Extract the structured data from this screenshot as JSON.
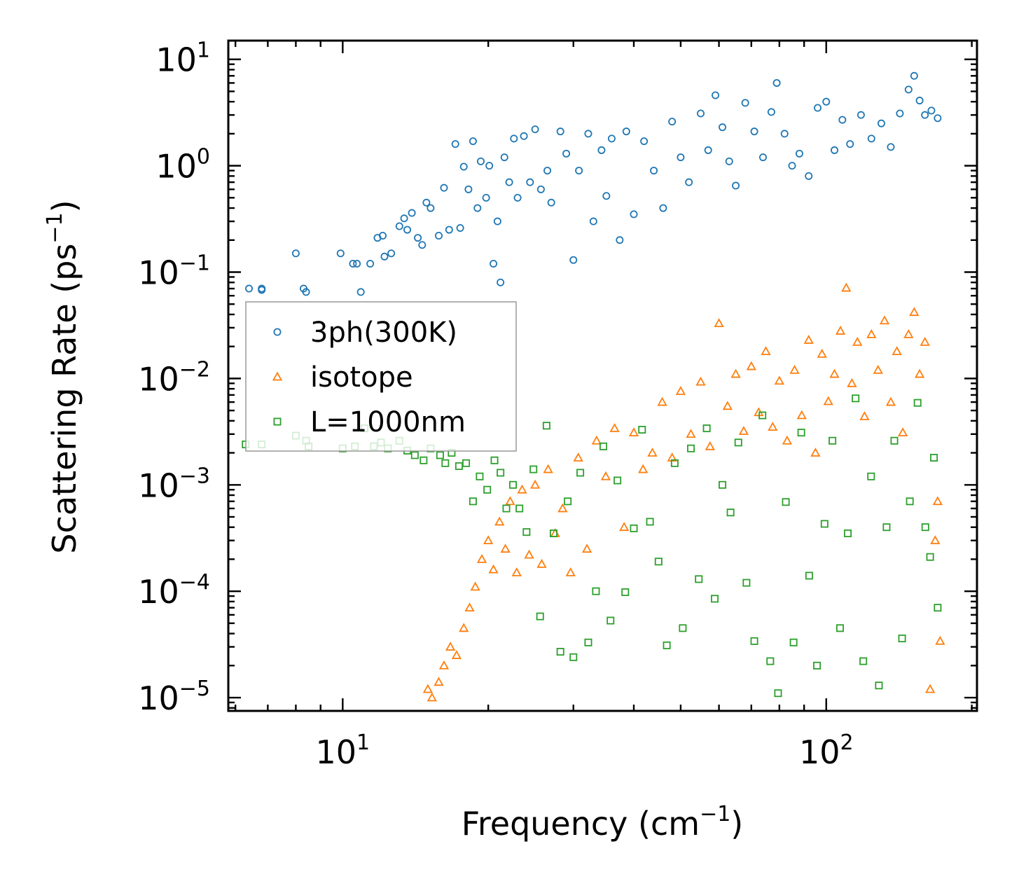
{
  "chart_data": {
    "type": "scatter",
    "xlabel": "Frequency (cm",
    "xlabel_sup": "−1",
    "xlabel_end": ")",
    "ylabel": "Scattering Rate (ps",
    "ylabel_sup": "−1",
    "ylabel_end": ")",
    "xscale": "log",
    "yscale": "log",
    "xlim": [
      5.8,
      205
    ],
    "ylim": [
      7.5e-06,
      15
    ],
    "x_ticks": [
      {
        "value": 10,
        "base": "10",
        "exp": "1"
      },
      {
        "value": 100,
        "base": "10",
        "exp": "2"
      }
    ],
    "y_ticks": [
      {
        "value": 10,
        "base": "10",
        "exp": "1"
      },
      {
        "value": 1,
        "base": "10",
        "exp": "0"
      },
      {
        "value": 0.1,
        "base": "10",
        "exp": "−1"
      },
      {
        "value": 0.01,
        "base": "10",
        "exp": "−2"
      },
      {
        "value": 0.001,
        "base": "10",
        "exp": "−3"
      },
      {
        "value": 0.0001,
        "base": "10",
        "exp": "−4"
      },
      {
        "value": 1e-05,
        "base": "10",
        "exp": "−5"
      }
    ],
    "legend_position": "center-left",
    "series": [
      {
        "name": "3ph(300K)",
        "marker": "circle",
        "color": "#1f77b4",
        "points": [
          [
            6.4,
            0.07
          ],
          [
            6.8,
            0.07
          ],
          [
            6.8,
            0.068
          ],
          [
            8.0,
            0.15
          ],
          [
            8.3,
            0.07
          ],
          [
            8.4,
            0.065
          ],
          [
            9.9,
            0.15
          ],
          [
            10.5,
            0.12
          ],
          [
            10.7,
            0.12
          ],
          [
            10.9,
            0.065
          ],
          [
            11.4,
            0.12
          ],
          [
            11.8,
            0.21
          ],
          [
            12.1,
            0.22
          ],
          [
            12.2,
            0.14
          ],
          [
            12.6,
            0.15
          ],
          [
            13.1,
            0.27
          ],
          [
            13.4,
            0.32
          ],
          [
            13.6,
            0.25
          ],
          [
            13.9,
            0.36
          ],
          [
            14.3,
            0.21
          ],
          [
            14.6,
            0.18
          ],
          [
            14.9,
            0.45
          ],
          [
            15.2,
            0.4
          ],
          [
            15.8,
            0.22
          ],
          [
            16.2,
            0.62
          ],
          [
            16.6,
            0.25
          ],
          [
            17.1,
            1.6
          ],
          [
            17.5,
            0.26
          ],
          [
            17.8,
            0.98
          ],
          [
            18.2,
            0.6
          ],
          [
            18.6,
            1.7
          ],
          [
            19.0,
            0.4
          ],
          [
            19.3,
            1.1
          ],
          [
            19.8,
            0.5
          ],
          [
            20.1,
            1.0
          ],
          [
            20.5,
            0.12
          ],
          [
            20.9,
            0.3
          ],
          [
            21.2,
            0.08
          ],
          [
            21.6,
            1.2
          ],
          [
            22.1,
            0.7
          ],
          [
            22.6,
            1.8
          ],
          [
            23.0,
            0.5
          ],
          [
            23.7,
            1.9
          ],
          [
            24.4,
            0.7
          ],
          [
            25.0,
            2.2
          ],
          [
            25.7,
            0.6
          ],
          [
            26.5,
            0.9
          ],
          [
            27.0,
            0.45
          ],
          [
            28.2,
            2.1
          ],
          [
            29.0,
            1.3
          ],
          [
            30.0,
            0.13
          ],
          [
            30.8,
            0.9
          ],
          [
            32.2,
            2.0
          ],
          [
            33.0,
            0.3
          ],
          [
            34.3,
            1.4
          ],
          [
            35.1,
            0.52
          ],
          [
            36.0,
            1.8
          ],
          [
            37.4,
            0.2
          ],
          [
            38.6,
            2.1
          ],
          [
            40.0,
            0.35
          ],
          [
            42.0,
            1.7
          ],
          [
            44.0,
            0.9
          ],
          [
            46.0,
            0.4
          ],
          [
            48.0,
            2.6
          ],
          [
            50.0,
            1.2
          ],
          [
            52.0,
            0.7
          ],
          [
            55.0,
            3.1
          ],
          [
            57.0,
            1.4
          ],
          [
            59.0,
            4.6
          ],
          [
            61.0,
            2.3
          ],
          [
            63.0,
            1.1
          ],
          [
            65.0,
            0.65
          ],
          [
            68.0,
            3.9
          ],
          [
            71.0,
            2.1
          ],
          [
            74.0,
            1.2
          ],
          [
            77.0,
            3.2
          ],
          [
            79.0,
            6.0
          ],
          [
            82.0,
            2.0
          ],
          [
            85.0,
            1.0
          ],
          [
            88.0,
            1.3
          ],
          [
            92.0,
            0.8
          ],
          [
            96.0,
            3.5
          ],
          [
            100.0,
            4.0
          ],
          [
            104.0,
            1.4
          ],
          [
            108.0,
            2.7
          ],
          [
            112.0,
            1.6
          ],
          [
            118.0,
            3.0
          ],
          [
            124.0,
            1.8
          ],
          [
            130.0,
            2.5
          ],
          [
            136.0,
            1.5
          ],
          [
            142.0,
            3.1
          ],
          [
            148.0,
            5.2
          ],
          [
            152.0,
            7.0
          ],
          [
            156.0,
            4.1
          ],
          [
            160.0,
            3.0
          ],
          [
            165.0,
            3.3
          ],
          [
            170.0,
            2.8
          ]
        ]
      },
      {
        "name": "isotope",
        "marker": "triangle",
        "color": "#ff7f0e",
        "points": [
          [
            15.0,
            1.2e-05
          ],
          [
            15.3,
            1e-05
          ],
          [
            15.8,
            1.4e-05
          ],
          [
            16.2,
            2e-05
          ],
          [
            16.7,
            3e-05
          ],
          [
            17.2,
            2.5e-05
          ],
          [
            17.8,
            4.5e-05
          ],
          [
            18.3,
            7e-05
          ],
          [
            18.8,
            0.00011
          ],
          [
            19.4,
            0.0002
          ],
          [
            20.0,
            0.0003
          ],
          [
            20.5,
            0.00016
          ],
          [
            21.1,
            0.00045
          ],
          [
            21.7,
            0.00025
          ],
          [
            22.2,
            0.0007
          ],
          [
            22.9,
            0.00015
          ],
          [
            23.5,
            0.0009
          ],
          [
            24.3,
            0.00022
          ],
          [
            25.0,
            0.001
          ],
          [
            25.8,
            0.00018
          ],
          [
            26.6,
            0.0014
          ],
          [
            27.5,
            0.00035
          ],
          [
            28.5,
            0.0006
          ],
          [
            29.6,
            0.00015
          ],
          [
            30.7,
            0.0018
          ],
          [
            32.0,
            0.00025
          ],
          [
            33.5,
            0.0026
          ],
          [
            35.0,
            0.0012
          ],
          [
            36.5,
            0.0034
          ],
          [
            38.2,
            0.0004
          ],
          [
            40.0,
            0.0031
          ],
          [
            41.8,
            0.0014
          ],
          [
            43.7,
            0.002
          ],
          [
            45.8,
            0.006
          ],
          [
            48.0,
            0.0018
          ],
          [
            50.0,
            0.0076
          ],
          [
            52.5,
            0.003
          ],
          [
            55.0,
            0.0093
          ],
          [
            57.5,
            0.0023
          ],
          [
            60.0,
            0.033
          ],
          [
            62.5,
            0.0055
          ],
          [
            65.0,
            0.011
          ],
          [
            67.5,
            0.0032
          ],
          [
            70.0,
            0.013
          ],
          [
            72.5,
            0.0048
          ],
          [
            75.0,
            0.018
          ],
          [
            77.5,
            0.0035
          ],
          [
            80.0,
            0.0095
          ],
          [
            83.0,
            0.0026
          ],
          [
            86.0,
            0.012
          ],
          [
            89.0,
            0.0045
          ],
          [
            92.0,
            0.023
          ],
          [
            95.0,
            0.002
          ],
          [
            98.0,
            0.017
          ],
          [
            101.0,
            0.0061
          ],
          [
            104.0,
            0.011
          ],
          [
            107.0,
            0.028
          ],
          [
            110.0,
            0.071
          ],
          [
            113.0,
            0.009
          ],
          [
            116.0,
            0.022
          ],
          [
            120.0,
            0.0044
          ],
          [
            124.0,
            0.026
          ],
          [
            128.0,
            0.012
          ],
          [
            132.0,
            0.035
          ],
          [
            136.0,
            0.006
          ],
          [
            140.0,
            0.018
          ],
          [
            144.0,
            0.0031
          ],
          [
            148.0,
            0.026
          ],
          [
            152.0,
            0.042
          ],
          [
            156.0,
            0.011
          ],
          [
            160.0,
            0.022
          ],
          [
            164.0,
            1.2e-05
          ],
          [
            168.0,
            0.0003
          ],
          [
            170.0,
            0.0007
          ],
          [
            172.0,
            3.4e-05
          ]
        ]
      },
      {
        "name": "L=1000nm",
        "marker": "square",
        "color": "#2ca02c",
        "points": [
          [
            6.3,
            0.0024
          ],
          [
            6.8,
            0.0024
          ],
          [
            8.0,
            0.0029
          ],
          [
            8.4,
            0.0026
          ],
          [
            8.5,
            0.0023
          ],
          [
            10.0,
            0.0022
          ],
          [
            10.6,
            0.0023
          ],
          [
            11.1,
            0.0034
          ],
          [
            11.6,
            0.0023
          ],
          [
            12.0,
            0.0025
          ],
          [
            12.4,
            0.0022
          ],
          [
            13.1,
            0.0026
          ],
          [
            13.6,
            0.0021
          ],
          [
            14.1,
            0.0019
          ],
          [
            14.7,
            0.0017
          ],
          [
            15.2,
            0.0022
          ],
          [
            15.9,
            0.0019
          ],
          [
            16.3,
            0.0016
          ],
          [
            16.8,
            0.002
          ],
          [
            17.4,
            0.0015
          ],
          [
            18.0,
            0.0016
          ],
          [
            18.6,
            0.0007
          ],
          [
            19.2,
            0.0012
          ],
          [
            19.9,
            0.0009
          ],
          [
            20.6,
            0.0017
          ],
          [
            21.2,
            0.0013
          ],
          [
            21.8,
            0.0006
          ],
          [
            22.5,
            0.001
          ],
          [
            23.2,
            0.0006
          ],
          [
            24.0,
            0.00036
          ],
          [
            24.8,
            0.0014
          ],
          [
            25.6,
            5.8e-05
          ],
          [
            26.4,
            0.0036
          ],
          [
            27.3,
            0.00035
          ],
          [
            28.2,
            2.7e-05
          ],
          [
            29.2,
            0.0007
          ],
          [
            30.0,
            2.4e-05
          ],
          [
            31.0,
            0.0013
          ],
          [
            32.2,
            3.3e-05
          ],
          [
            33.4,
            0.0001
          ],
          [
            34.6,
            0.0023
          ],
          [
            35.8,
            5.3e-05
          ],
          [
            37.0,
            0.0011
          ],
          [
            38.4,
            9.8e-05
          ],
          [
            40.0,
            0.00039
          ],
          [
            41.6,
            0.0033
          ],
          [
            43.2,
            0.00045
          ],
          [
            45.0,
            0.00019
          ],
          [
            46.8,
            3.1e-05
          ],
          [
            48.6,
            0.0016
          ],
          [
            50.5,
            4.5e-05
          ],
          [
            52.5,
            0.0022
          ],
          [
            54.5,
            0.00013
          ],
          [
            56.6,
            0.0034
          ],
          [
            58.8,
            8.5e-05
          ],
          [
            61.0,
            0.001
          ],
          [
            63.4,
            0.00055
          ],
          [
            65.8,
            0.0025
          ],
          [
            68.4,
            0.00012
          ],
          [
            71.0,
            3.4e-05
          ],
          [
            73.8,
            0.0045
          ],
          [
            76.6,
            2.2e-05
          ],
          [
            79.5,
            1.1e-05
          ],
          [
            82.5,
            0.00069
          ],
          [
            85.6,
            3.3e-05
          ],
          [
            88.8,
            0.0031
          ],
          [
            92.2,
            0.00014
          ],
          [
            95.7,
            2e-05
          ],
          [
            99.2,
            0.00043
          ],
          [
            103.0,
            0.0026
          ],
          [
            106.8,
            4.5e-05
          ],
          [
            110.8,
            0.00035
          ],
          [
            115.0,
            0.0065
          ],
          [
            119.3,
            2.2e-05
          ],
          [
            123.8,
            0.0012
          ],
          [
            128.5,
            1.3e-05
          ],
          [
            133.3,
            0.0004
          ],
          [
            138.3,
            0.0026
          ],
          [
            143.5,
            3.6e-05
          ],
          [
            148.9,
            0.0007
          ],
          [
            154.5,
            0.0059
          ],
          [
            160.3,
            0.0004
          ],
          [
            164.0,
            0.00021
          ],
          [
            167.0,
            0.0018
          ],
          [
            170.0,
            7e-05
          ]
        ]
      }
    ]
  }
}
